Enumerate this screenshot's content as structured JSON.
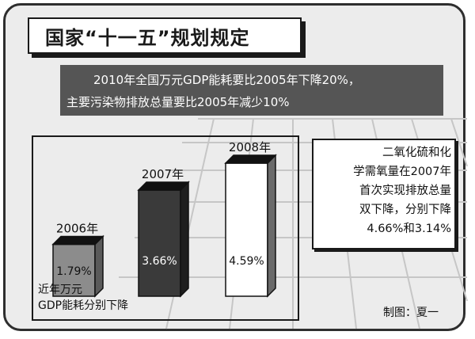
{
  "title": "国家“十一五”规划规定",
  "subtitle": {
    "line1": "2010年全国万元GDP能耗要比2005年下降20%，",
    "line2": "主要污染物排放总量要比2005年减少10%"
  },
  "chart_data": {
    "type": "bar",
    "categories": [
      "2006年",
      "2007年",
      "2008年"
    ],
    "values": [
      1.79,
      3.66,
      4.59
    ],
    "value_labels": [
      "1.79%",
      "3.66%",
      "4.59%"
    ],
    "colors": [
      "#8c8c8c",
      "#3a3a3a",
      "#ffffff"
    ],
    "caption_line1": "近年万元",
    "caption_line2": "GDP能耗分别下降"
  },
  "note": "二氧化硫和化\n学需氧量在2007年\n首次实现排放总量\n双下降，分别下降\n4.66%和3.14%",
  "credit": "制图：夏一"
}
